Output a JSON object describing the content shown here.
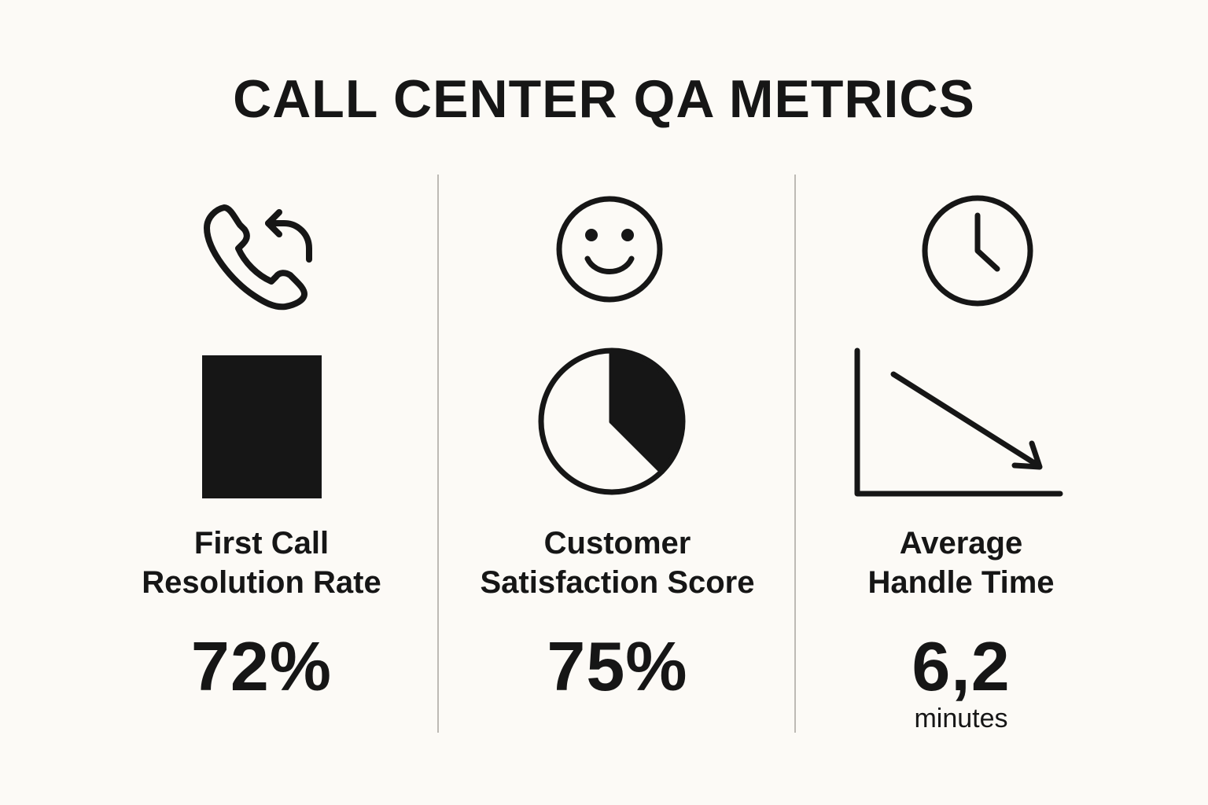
{
  "title": "CALL CENTER QA METRICS",
  "metrics": [
    {
      "label_line1": "First Call",
      "label_line2": "Resolution Rate",
      "value": "72%",
      "icon": "phone-callback-icon"
    },
    {
      "label_line1": "Customer",
      "label_line2": "Satisfaction Score",
      "value": "75%",
      "icon": "smiley-face-icon",
      "pie_filled_fraction": 0.375
    },
    {
      "label_line1": "Average",
      "label_line2": "Handle Time",
      "value": "6,2",
      "unit": "minutes",
      "icon": "clock-icon",
      "trend": "down"
    }
  ],
  "colors": {
    "background": "#fcfaf6",
    "ink": "#161616",
    "divider": "#bdbab5"
  }
}
